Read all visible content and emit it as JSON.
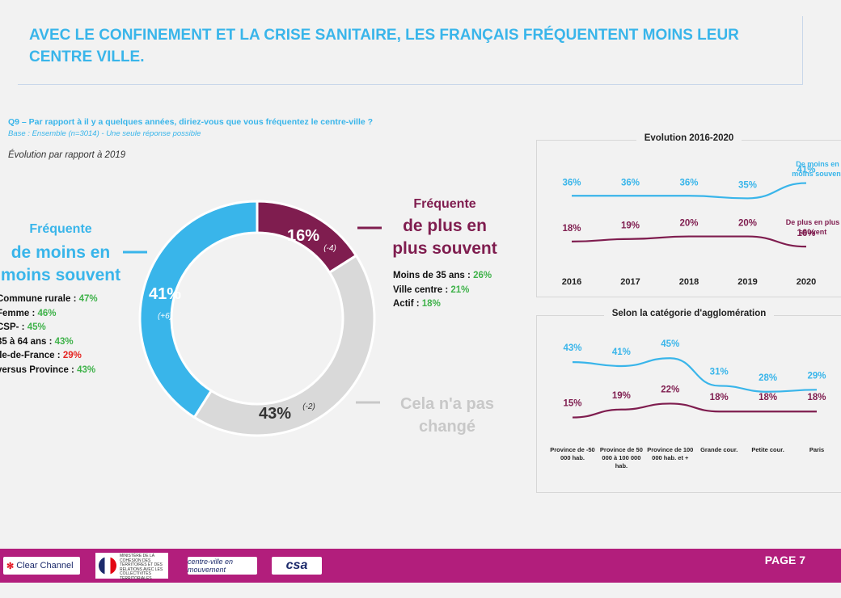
{
  "title": "AVEC LE CONFINEMENT ET LA CRISE SANITAIRE, LES FRANÇAIS FRÉQUENTENT MOINS LEUR CENTRE VILLE.",
  "question": "Q9 – Par rapport à il y a quelques années, diriez-vous que vous fréquentez le centre-ville ?",
  "base": "Base : Ensemble (n=3014) - Une seule réponse possible",
  "evolution_label": "Évolution par rapport à 2019",
  "colors": {
    "blue": "#39b5ea",
    "purple": "#7f1d4f",
    "grey": "#d9d9d9",
    "footer": "#b21e7c"
  },
  "less_often": {
    "line1": "Fréquente",
    "line2": "de moins en",
    "line3": "moins souvent",
    "details": [
      {
        "label": "Commune rurale : ",
        "value": "47%"
      },
      {
        "label": "Femme : ",
        "value": "46%"
      },
      {
        "label": "CSP- : ",
        "value": "45%"
      },
      {
        "label": "35 à 64 ans  : ",
        "value": "43%"
      },
      {
        "label": "Île-de-France : ",
        "value": "29%"
      },
      {
        "label": "versus Province : ",
        "value": "43%"
      }
    ]
  },
  "more_often": {
    "line1": "Fréquente",
    "line2": "de plus en",
    "line3": "plus souvent",
    "details": [
      {
        "label": "Moins de 35 ans : ",
        "value": "26%"
      },
      {
        "label": "Ville centre : ",
        "value": "21%"
      },
      {
        "label": "Actif : ",
        "value": "18%"
      }
    ]
  },
  "unchanged": {
    "line1": "Cela n'a pas",
    "line2": "changé"
  },
  "footer": {
    "page": "PAGE 7",
    "logo_cc": "Clear Channel",
    "logo_ministry": "MINISTÈRE DE LA COHÉSION DES TERRITOIRES ET DES RELATIONS AVEC LES COLLECTIVITÉS TERRITORIALES",
    "logo_cv": "centre-ville en mouvement",
    "logo_csa": "csa"
  },
  "chart_data": [
    {
      "type": "pie",
      "variant": "donut",
      "categories": [
        "Fréquente de plus en plus souvent",
        "Cela n'a pas changé",
        "Fréquente de moins en moins souvent"
      ],
      "values": [
        16,
        43,
        41
      ],
      "value_labels": [
        "16%",
        "43%",
        "41%"
      ],
      "change_labels": [
        "(-4)",
        "(-2)",
        "(+6)"
      ],
      "colors": [
        "#7f1d4f",
        "#d9d9d9",
        "#39b5ea"
      ]
    },
    {
      "type": "line",
      "title": "Evolution 2016-2020",
      "categories": [
        "2016",
        "2017",
        "2018",
        "2019",
        "2020"
      ],
      "series": [
        {
          "name": "De moins en moins souvent",
          "values": [
            36,
            36,
            36,
            35,
            41
          ],
          "color": "#39b5ea"
        },
        {
          "name": "De plus en plus souvent",
          "values": [
            18,
            19,
            20,
            20,
            16
          ],
          "color": "#7f1d4f"
        }
      ]
    },
    {
      "type": "line",
      "title": "Selon la catégorie d'agglomération",
      "categories": [
        "Province de -50 000 hab.",
        "Province de 50 000 à 100 000 hab.",
        "Province de 100 000 hab. et +",
        "Grande cour.",
        "Petite cour.",
        "Paris"
      ],
      "series": [
        {
          "values": [
            43,
            41,
            45,
            31,
            28,
            29
          ],
          "color": "#39b5ea"
        },
        {
          "values": [
            15,
            19,
            22,
            18,
            18,
            18
          ],
          "color": "#7f1d4f"
        }
      ]
    }
  ]
}
